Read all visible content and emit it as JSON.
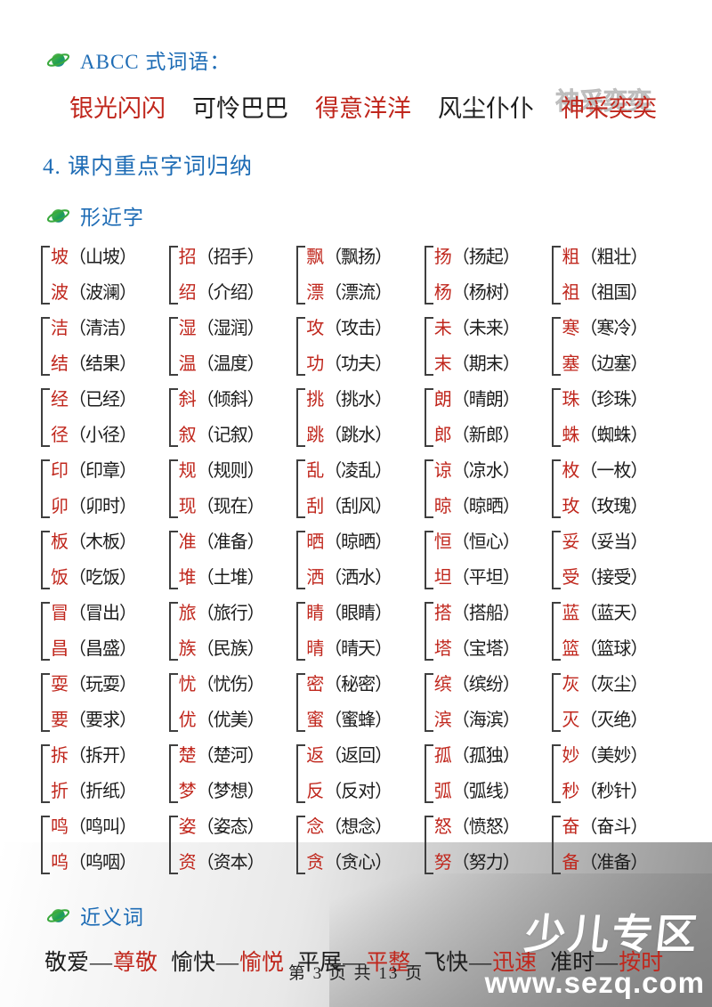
{
  "colors": {
    "accent_blue": "#1e6cb5",
    "red": "#c0271d",
    "ink": "#1c1c1c"
  },
  "page": {
    "footer": "第 3 页 共 13 页",
    "watermark_brand": "少儿专区",
    "watermark_site": "www.sezq.com"
  },
  "abcc": {
    "title": "ABCC 式词语：",
    "words": [
      {
        "text": "银光闪闪",
        "color": "red"
      },
      {
        "text": "可怜巴巴",
        "color": "black"
      },
      {
        "text": "得意洋洋",
        "color": "red"
      },
      {
        "text": "风尘仆仆",
        "color": "black"
      },
      {
        "text": "神采奕奕",
        "color": "red",
        "watermarked": true
      }
    ]
  },
  "section4": {
    "title": "4. 课内重点字词归纳"
  },
  "xjz": {
    "title": "形近字",
    "rows": [
      [
        {
          "t": "坡",
          "tw": "（山坡）",
          "b": "波",
          "bw": "（波澜）"
        },
        {
          "t": "招",
          "tw": "（招手）",
          "b": "绍",
          "bw": "（介绍）"
        },
        {
          "t": "飘",
          "tw": "（飘扬）",
          "b": "漂",
          "bw": "（漂流）"
        },
        {
          "t": "扬",
          "tw": "（扬起）",
          "b": "杨",
          "bw": "（杨树）"
        },
        {
          "t": "粗",
          "tw": "（粗壮）",
          "b": "祖",
          "bw": "（祖国）"
        }
      ],
      [
        {
          "t": "洁",
          "tw": "（清洁）",
          "b": "结",
          "bw": "（结果）"
        },
        {
          "t": "湿",
          "tw": "（湿润）",
          "b": "温",
          "bw": "（温度）"
        },
        {
          "t": "攻",
          "tw": "（攻击）",
          "b": "功",
          "bw": "（功夫）"
        },
        {
          "t": "未",
          "tw": "（未来）",
          "b": "末",
          "bw": "（期末）"
        },
        {
          "t": "寒",
          "tw": "（寒冷）",
          "b": "塞",
          "bw": "（边塞）"
        }
      ],
      [
        {
          "t": "经",
          "tw": "（已经）",
          "b": "径",
          "bw": "（小径）"
        },
        {
          "t": "斜",
          "tw": "（倾斜）",
          "b": "叙",
          "bw": "（记叙）"
        },
        {
          "t": "挑",
          "tw": "（挑水）",
          "b": "跳",
          "bw": "（跳水）"
        },
        {
          "t": "朗",
          "tw": "（晴朗）",
          "b": "郎",
          "bw": "（新郎）"
        },
        {
          "t": "珠",
          "tw": "（珍珠）",
          "b": "蛛",
          "bw": "（蜘蛛）"
        }
      ],
      [
        {
          "t": "印",
          "tw": "（印章）",
          "b": "卯",
          "bw": "（卯时）"
        },
        {
          "t": "规",
          "tw": "（规则）",
          "b": "现",
          "bw": "（现在）"
        },
        {
          "t": "乱",
          "tw": "（凌乱）",
          "b": "刮",
          "bw": "（刮风）"
        },
        {
          "t": "谅",
          "tw": "（凉水）",
          "b": "晾",
          "bw": "（晾晒）"
        },
        {
          "t": "枚",
          "tw": "（一枚）",
          "b": "玫",
          "bw": "（玫瑰）"
        }
      ],
      [
        {
          "t": "板",
          "tw": "（木板）",
          "b": "饭",
          "bw": "（吃饭）"
        },
        {
          "t": "准",
          "tw": "（准备）",
          "b": "堆",
          "bw": "（土堆）"
        },
        {
          "t": "晒",
          "tw": "（晾晒）",
          "b": "洒",
          "bw": "（洒水）"
        },
        {
          "t": "恒",
          "tw": "（恒心）",
          "b": "坦",
          "bw": "（平坦）"
        },
        {
          "t": "妥",
          "tw": "（妥当）",
          "b": "受",
          "bw": "（接受）"
        }
      ],
      [
        {
          "t": "冒",
          "tw": "（冒出）",
          "b": "昌",
          "bw": "（昌盛）"
        },
        {
          "t": "旅",
          "tw": "（旅行）",
          "b": "族",
          "bw": "（民族）"
        },
        {
          "t": "睛",
          "tw": "（眼睛）",
          "b": "晴",
          "bw": "（晴天）"
        },
        {
          "t": "搭",
          "tw": "（搭船）",
          "b": "塔",
          "bw": "（宝塔）"
        },
        {
          "t": "蓝",
          "tw": "（蓝天）",
          "b": "篮",
          "bw": "（篮球）"
        }
      ],
      [
        {
          "t": "耍",
          "tw": "（玩耍）",
          "b": "要",
          "bw": "（要求）"
        },
        {
          "t": "忧",
          "tw": "（忧伤）",
          "b": "优",
          "bw": "（优美）"
        },
        {
          "t": "密",
          "tw": "（秘密）",
          "b": "蜜",
          "bw": "（蜜蜂）"
        },
        {
          "t": "缤",
          "tw": "（缤纷）",
          "b": "滨",
          "bw": "（海滨）"
        },
        {
          "t": "灰",
          "tw": "（灰尘）",
          "b": "灭",
          "bw": "（灭绝）"
        }
      ],
      [
        {
          "t": "拆",
          "tw": "（拆开）",
          "b": "折",
          "bw": "（折纸）"
        },
        {
          "t": "楚",
          "tw": "（楚河）",
          "b": "梦",
          "bw": "（梦想）"
        },
        {
          "t": "返",
          "tw": "（返回）",
          "b": "反",
          "bw": "（反对）"
        },
        {
          "t": "孤",
          "tw": "（孤独）",
          "b": "弧",
          "bw": "（弧线）"
        },
        {
          "t": "妙",
          "tw": "（美妙）",
          "b": "秒",
          "bw": "（秒针）"
        }
      ],
      [
        {
          "t": "鸣",
          "tw": "（鸣叫）",
          "b": "呜",
          "bw": "（呜咽）"
        },
        {
          "t": "姿",
          "tw": "（姿态）",
          "b": "资",
          "bw": "（资本）"
        },
        {
          "t": "念",
          "tw": "（想念）",
          "b": "贪",
          "bw": "（贪心）"
        },
        {
          "t": "怒",
          "tw": "（愤怒）",
          "b": "努",
          "bw": "（努力）"
        },
        {
          "t": "奋",
          "tw": "（奋斗）",
          "b": "备",
          "bw": "（准备）"
        }
      ]
    ]
  },
  "jyc": {
    "title": "近义词",
    "dash": "—",
    "pairs": [
      {
        "left": "敬爱",
        "right": "尊敬"
      },
      {
        "left": "愉快",
        "right": "愉悦"
      },
      {
        "left": "平展",
        "right": "平整"
      },
      {
        "left": "飞快",
        "right": "迅速"
      },
      {
        "left": "准时",
        "right": "按时"
      }
    ]
  }
}
